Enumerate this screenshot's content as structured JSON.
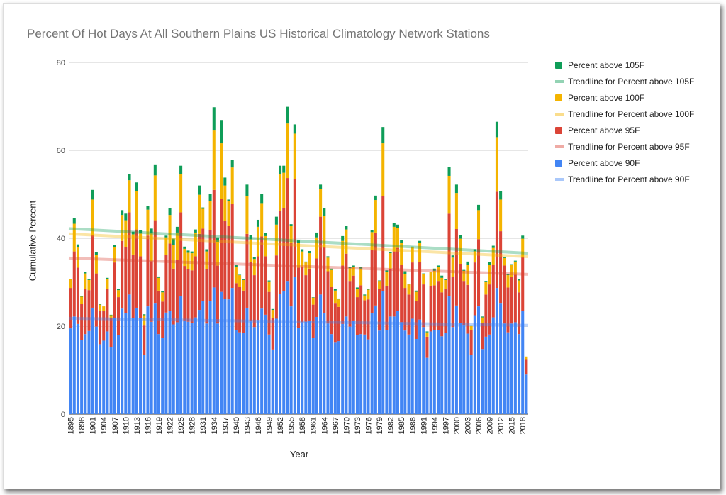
{
  "chart_data": {
    "type": "bar",
    "stacked": true,
    "title": "Percent Of Hot Days At All Southern Plains US Historical Climatology Network Stations",
    "xlabel": "Year",
    "ylabel": "Cumulative Percent",
    "ylim": [
      0,
      80
    ],
    "yticks": [
      "0",
      "20",
      "40",
      "60",
      "80"
    ],
    "ytick_values": [
      0,
      20,
      40,
      60,
      80
    ],
    "grid": true,
    "legend_position": "right",
    "first_year": 1895,
    "xtick_labels": [
      "1895",
      "1898",
      "1901",
      "1904",
      "1907",
      "1910",
      "1913",
      "1916",
      "1919",
      "1922",
      "1925",
      "1928",
      "1931",
      "1934",
      "1937",
      "1940",
      "1943",
      "1946",
      "1949",
      "1952",
      "1955",
      "1958",
      "1961",
      "1964",
      "1967",
      "1970",
      "1973",
      "1976",
      "1979",
      "1982",
      "1985",
      "1988",
      "1991",
      "1994",
      "1997",
      "2000",
      "2003",
      "2006",
      "2009",
      "2012",
      "2015",
      "2018"
    ],
    "colors": {
      "p90": "#4285F4",
      "p95": "#DB4437",
      "p100": "#F4B400",
      "p105": "#0F9D58"
    },
    "legend": [
      {
        "label": "Percent above 105F",
        "kind": "bar",
        "key": "p105"
      },
      {
        "label": "Trendline for Percent above 105F",
        "kind": "trend",
        "key": "p105"
      },
      {
        "label": "Percent above 100F",
        "kind": "bar",
        "key": "p100"
      },
      {
        "label": "Trendline for Percent above 100F",
        "kind": "trend",
        "key": "p100"
      },
      {
        "label": "Percent above 95F",
        "kind": "bar",
        "key": "p95"
      },
      {
        "label": "Trendline for Percent above 95F",
        "kind": "trend",
        "key": "p95"
      },
      {
        "label": "Percent above 90F",
        "kind": "bar",
        "key": "p90"
      },
      {
        "label": "Trendline for Percent above 90F",
        "kind": "trend",
        "key": "p90"
      }
    ],
    "series_order": [
      "p90",
      "p95",
      "p100",
      "p105"
    ],
    "trendlines_cumulative": {
      "p90": [
        21.8,
        20.2
      ],
      "p95": [
        35.5,
        31.8
      ],
      "p100": [
        41.0,
        35.8
      ],
      "p105": [
        42.2,
        36.6
      ]
    },
    "values_by_year": [
      [
        19.5,
        9.2,
        2.0,
        0.0
      ],
      [
        22.2,
        14.8,
        6.3,
        1.3
      ],
      [
        20.5,
        12.8,
        4.6,
        0.7
      ],
      [
        16.8,
        8.3,
        1.6,
        0.2
      ],
      [
        18.2,
        10.2,
        3.6,
        0.4
      ],
      [
        18.9,
        9.3,
        2.3,
        0.3
      ],
      [
        24.2,
        16.6,
        8.0,
        2.2
      ],
      [
        19.9,
        12.1,
        4.2,
        0.6
      ],
      [
        15.9,
        7.5,
        1.5,
        0.1
      ],
      [
        16.7,
        6.7,
        1.1,
        0.0
      ],
      [
        18.8,
        9.6,
        2.3,
        0.3
      ],
      [
        15.3,
        6.5,
        0.7,
        0.1
      ],
      [
        21.9,
        12.6,
        3.5,
        0.4
      ],
      [
        18.0,
        8.6,
        1.6,
        0.2
      ],
      [
        24.0,
        15.4,
        5.9,
        1.1
      ],
      [
        23.0,
        15.0,
        6.1,
        1.5
      ],
      [
        27.2,
        18.7,
        7.3,
        1.4
      ],
      [
        21.9,
        14.4,
        4.6,
        0.6
      ],
      [
        24.2,
        17.8,
        8.7,
        2.0
      ],
      [
        21.8,
        14.1,
        5.2,
        0.8
      ],
      [
        13.4,
        6.9,
        2.2,
        0.2
      ],
      [
        24.5,
        16.1,
        5.9,
        0.8
      ],
      [
        21.0,
        13.8,
        6.3,
        1.1
      ],
      [
        25.3,
        18.8,
        10.2,
        2.5
      ],
      [
        18.2,
        9.9,
        2.9,
        0.3
      ],
      [
        17.4,
        8.2,
        2.1,
        0.2
      ],
      [
        23.1,
        13.1,
        4.0,
        0.4
      ],
      [
        23.5,
        15.3,
        6.5,
        1.5
      ],
      [
        20.4,
        12.7,
        5.4,
        1.4
      ],
      [
        20.9,
        14.1,
        6.3,
        1.3
      ],
      [
        26.9,
        19.0,
        8.7,
        1.9
      ],
      [
        21.3,
        12.4,
        3.9,
        0.5
      ],
      [
        21.0,
        12.0,
        3.7,
        0.5
      ],
      [
        20.8,
        11.9,
        3.9,
        0.4
      ],
      [
        22.0,
        13.9,
        5.4,
        0.7
      ],
      [
        23.7,
        17.3,
        8.9,
        2.1
      ],
      [
        25.8,
        16.4,
        4.5,
        0.3
      ],
      [
        20.6,
        12.4,
        4.0,
        0.5
      ],
      [
        25.7,
        16.1,
        6.6,
        1.7
      ],
      [
        28.8,
        22.2,
        13.5,
        5.3
      ],
      [
        20.6,
        13.2,
        5.4,
        1.0
      ],
      [
        27.8,
        21.2,
        12.6,
        5.3
      ],
      [
        26.2,
        17.8,
        8.0,
        1.8
      ],
      [
        26.1,
        16.7,
        5.6,
        0.4
      ],
      [
        28.7,
        19.2,
        8.2,
        1.7
      ],
      [
        19.1,
        10.7,
        3.7,
        0.5
      ],
      [
        18.6,
        10.3,
        2.7,
        0.1
      ],
      [
        18.4,
        9.7,
        2.4,
        0.3
      ],
      [
        24.2,
        16.8,
        8.6,
        2.6
      ],
      [
        21.1,
        13.5,
        5.2,
        1.0
      ],
      [
        19.8,
        11.8,
        3.7,
        0.5
      ],
      [
        21.4,
        14.5,
        6.7,
        1.6
      ],
      [
        24.0,
        16.4,
        7.6,
        2.0
      ],
      [
        22.6,
        13.3,
        4.6,
        0.7
      ],
      [
        18.1,
        9.7,
        2.4,
        0.2
      ],
      [
        14.7,
        7.1,
        1.9,
        0.2
      ],
      [
        21.7,
        14.4,
        7.0,
        1.8
      ],
      [
        27.3,
        18.9,
        8.4,
        1.9
      ],
      [
        28.0,
        18.8,
        8.1,
        1.6
      ],
      [
        30.3,
        23.4,
        12.4,
        3.8
      ],
      [
        24.5,
        14.5,
        3.9,
        0.3
      ],
      [
        31.2,
        22.2,
        10.4,
        2.1
      ],
      [
        19.6,
        13.7,
        5.7,
        0.5
      ],
      [
        20.9,
        12.6,
        3.5,
        0.5
      ],
      [
        21.0,
        10.6,
        2.9,
        0.2
      ],
      [
        21.3,
        11.8,
        3.5,
        0.5
      ],
      [
        17.3,
        7.6,
        1.6,
        0.1
      ],
      [
        22.1,
        13.3,
        4.8,
        1.1
      ],
      [
        27.2,
        17.7,
        6.3,
        1.0
      ],
      [
        22.9,
        15.1,
        7.1,
        1.7
      ],
      [
        20.6,
        11.9,
        3.1,
        0.3
      ],
      [
        18.2,
        10.7,
        3.9,
        0.3
      ],
      [
        16.4,
        8.9,
        2.8,
        0.4
      ],
      [
        16.6,
        7.8,
        1.7,
        0.2
      ],
      [
        20.5,
        13.3,
        5.6,
        1.1
      ],
      [
        22.2,
        14.3,
        5.5,
        0.8
      ],
      [
        19.9,
        10.4,
        2.9,
        0.3
      ],
      [
        21.3,
        10.2,
        2.0,
        0.3
      ],
      [
        18.0,
        8.6,
        1.9,
        0.3
      ],
      [
        18.2,
        11.1,
        3.8,
        0.3
      ],
      [
        18.1,
        7.8,
        1.1,
        0.2
      ],
      [
        17.0,
        9.1,
        2.2,
        0.2
      ],
      [
        23.0,
        14.4,
        4.0,
        0.4
      ],
      [
        24.7,
        16.6,
        7.4,
        1.0
      ],
      [
        19.0,
        9.4,
        1.9,
        0.1
      ],
      [
        28.0,
        21.6,
        12.0,
        3.7
      ],
      [
        19.1,
        10.1,
        3.1,
        0.4
      ],
      [
        22.2,
        10.9,
        3.5,
        0.3
      ],
      [
        22.2,
        14.8,
        5.6,
        0.8
      ],
      [
        23.4,
        14.4,
        4.6,
        0.7
      ],
      [
        20.9,
        13.0,
        5.1,
        0.6
      ],
      [
        19.0,
        9.7,
        3.1,
        0.7
      ],
      [
        18.1,
        9.1,
        2.3,
        0.1
      ],
      [
        21.7,
        12.8,
        3.4,
        0.2
      ],
      [
        17.1,
        8.6,
        2.1,
        0.3
      ],
      [
        21.5,
        13.1,
        4.4,
        0.4
      ],
      [
        19.8,
        9.7,
        2.4,
        0.1
      ],
      [
        12.8,
        4.8,
        1.0,
        0.2
      ],
      [
        18.8,
        10.4,
        3.1,
        0.1
      ],
      [
        19.1,
        10.2,
        3.3,
        0.5
      ],
      [
        19.1,
        11.2,
        3.1,
        0.4
      ],
      [
        17.7,
        10.0,
        3.3,
        0.5
      ],
      [
        18.4,
        10.0,
        2.1,
        0.2
      ],
      [
        26.9,
        18.7,
        8.6,
        2.0
      ],
      [
        19.8,
        11.4,
        4.4,
        0.5
      ],
      [
        24.7,
        17.4,
        8.2,
        1.9
      ],
      [
        20.8,
        13.4,
        5.7,
        0.9
      ],
      [
        20.3,
        10.0,
        2.3,
        0.2
      ],
      [
        18.3,
        11.1,
        4.6,
        0.7
      ],
      [
        13.4,
        5.7,
        1.0,
        0.1
      ],
      [
        22.5,
        12.0,
        2.6,
        0.4
      ],
      [
        24.5,
        15.3,
        6.6,
        1.2
      ],
      [
        14.8,
        5.9,
        1.3,
        0.2
      ],
      [
        17.6,
        9.6,
        2.8,
        0.3
      ],
      [
        18.1,
        11.4,
        4.5,
        0.6
      ],
      [
        22.0,
        12.0,
        3.8,
        0.5
      ],
      [
        28.7,
        21.9,
        12.4,
        3.5
      ],
      [
        25.3,
        16.3,
        7.2,
        1.9
      ],
      [
        20.6,
        13.2,
        1.7,
        0.3
      ],
      [
        18.6,
        10.2,
        2.8,
        0.2
      ],
      [
        20.6,
        10.6,
        2.7,
        0.2
      ],
      [
        20.9,
        10.8,
        3.0,
        0.2
      ],
      [
        18.2,
        9.5,
        2.7,
        0.3
      ],
      [
        23.4,
        12.4,
        4.1,
        0.7
      ],
      [
        9.0,
        3.5,
        0.6,
        0.0
      ]
    ]
  }
}
